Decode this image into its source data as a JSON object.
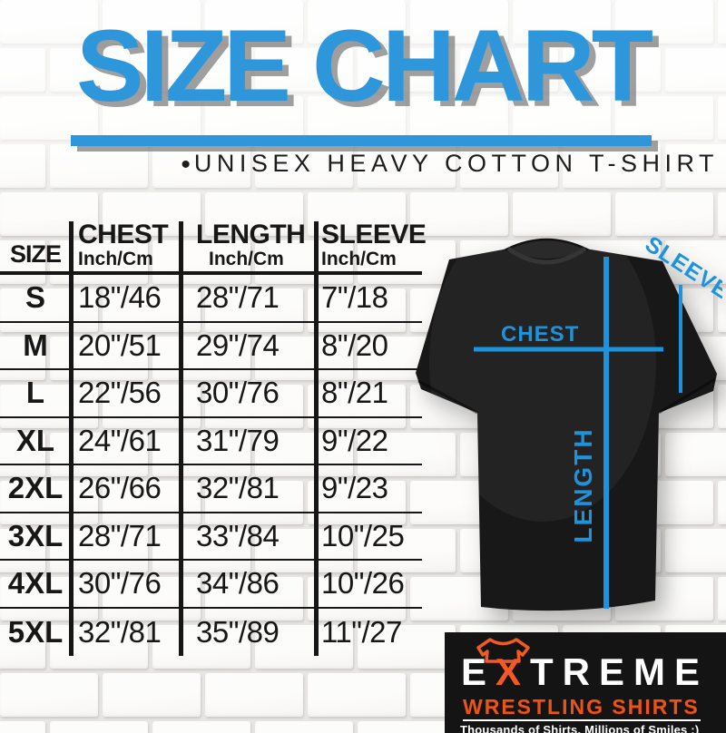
{
  "title": "SIZE CHART",
  "subtitle_bullet": "•",
  "subtitle": "UNISEX HEAVY COTTON T-SHIRT",
  "colors": {
    "accent_blue": "#2e97dc",
    "measure_line_blue": "#1d93dc",
    "table_ink": "#171717",
    "logo_orange": "#f15a24",
    "logo_red": "#e8541a",
    "logo_bg": "#151414"
  },
  "size_table": {
    "header": {
      "size": "SIZE",
      "chest": "CHEST",
      "chest_sub": "Inch/Cm",
      "length": "LENGTH",
      "length_sub": "Inch/Cm",
      "sleeve": "SLEEVE",
      "sleeve_sub": "Inch/Cm"
    },
    "rows": [
      {
        "size": "S",
        "chest": "18\"/46",
        "length": "28\"/71",
        "sleeve": "7\"/18"
      },
      {
        "size": "M",
        "chest": "20\"/51",
        "length": "29\"/74",
        "sleeve": "8\"/20"
      },
      {
        "size": "L",
        "chest": "22\"/56",
        "length": "30\"/76",
        "sleeve": "8\"/21"
      },
      {
        "size": "XL",
        "chest": "24\"/61",
        "length": "31\"/79",
        "sleeve": "9\"/22"
      },
      {
        "size": "2XL",
        "chest": "26\"/66",
        "length": "32\"/81",
        "sleeve": "9\"/23"
      },
      {
        "size": "3XL",
        "chest": "28\"/71",
        "length": "33\"/84",
        "sleeve": "10\"/25"
      },
      {
        "size": "4XL",
        "chest": "30\"/76",
        "length": "34\"/86",
        "sleeve": "10\"/26"
      },
      {
        "size": "5XL",
        "chest": "32\"/81",
        "length": "35\"/89",
        "sleeve": "11\"/27"
      }
    ]
  },
  "diagram": {
    "chest_label": "CHEST",
    "length_label": "LENGTH",
    "sleeve_label": "SLEEVE"
  },
  "logo": {
    "brand_prefix": "E",
    "brand_x": "X",
    "brand_suffix": "TREME",
    "line2": "WRESTLING SHIRTS",
    "tagline": "Thousands of Shirts. Millions of Smiles :)"
  },
  "chart_data": {
    "type": "table",
    "title": "SIZE CHART",
    "subtitle": "UNISEX HEAVY COTTON T-SHIRT",
    "columns": [
      "SIZE",
      "CHEST Inch/Cm",
      "LENGTH Inch/Cm",
      "SLEEVE Inch/Cm"
    ],
    "rows": [
      [
        "S",
        "18\"/46",
        "28\"/71",
        "7\"/18"
      ],
      [
        "M",
        "20\"/51",
        "29\"/74",
        "8\"/20"
      ],
      [
        "L",
        "22\"/56",
        "30\"/76",
        "8\"/21"
      ],
      [
        "XL",
        "24\"/61",
        "31\"/79",
        "9\"/22"
      ],
      [
        "2XL",
        "26\"/66",
        "32\"/81",
        "9\"/23"
      ],
      [
        "3XL",
        "28\"/71",
        "33\"/84",
        "10\"/25"
      ],
      [
        "4XL",
        "30\"/76",
        "34\"/86",
        "10\"/26"
      ],
      [
        "5XL",
        "32\"/81",
        "35\"/89",
        "11\"/27"
      ]
    ]
  }
}
